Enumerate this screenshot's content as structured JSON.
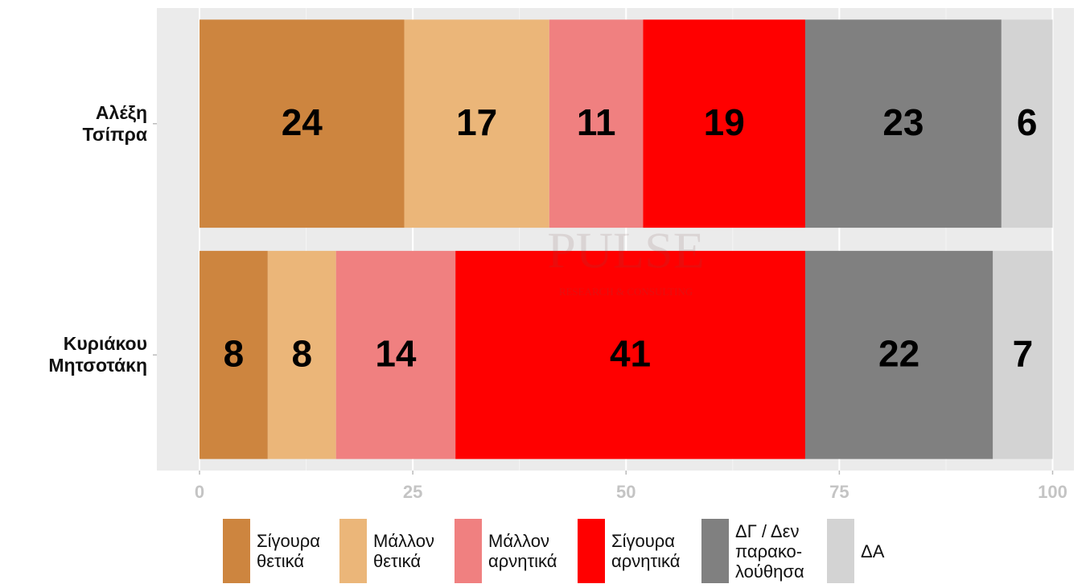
{
  "chart_data": {
    "type": "stacked-barh",
    "categories": [
      "Αλέξη\nΤσίπρα",
      "Κυριάκου\nΜητσοτάκη"
    ],
    "series": [
      {
        "name": "Σίγουρα\nθετικά",
        "color": "#cd853f",
        "values": [
          24,
          8
        ]
      },
      {
        "name": "Μάλλον\nθετικά",
        "color": "#ebb679",
        "values": [
          17,
          8
        ]
      },
      {
        "name": "Μάλλον\nαρνητικά",
        "color": "#f08080",
        "values": [
          11,
          14
        ]
      },
      {
        "name": "Σίγουρα\nαρνητικά",
        "color": "#ff0000",
        "values": [
          19,
          41
        ]
      },
      {
        "name": "ΔΓ / Δεν\nπαρακο-\nλούθησα",
        "color": "#808080",
        "values": [
          23,
          22
        ]
      },
      {
        "name": "ΔΑ",
        "color": "#d3d3d3",
        "values": [
          6,
          7
        ]
      }
    ],
    "xlim": [
      -5,
      102.5
    ],
    "xticks": [
      0,
      25,
      50,
      75,
      100
    ],
    "grid": true,
    "watermark": {
      "title": "PULSE",
      "subtitle": "RESEARCH & CONSULTING"
    }
  }
}
